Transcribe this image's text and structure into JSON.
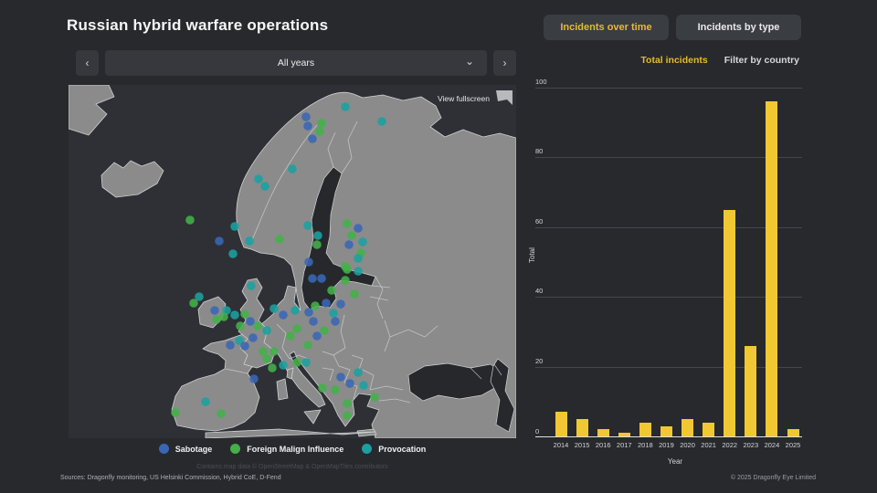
{
  "header": {
    "title": "Russian hybrid warfare operations",
    "tabs": [
      {
        "label": "Incidents over time",
        "active": true
      },
      {
        "label": "Incidents by type",
        "active": false
      }
    ]
  },
  "sub_tabs": [
    {
      "label": "Total incidents",
      "active": true
    },
    {
      "label": "Filter by country",
      "active": false
    }
  ],
  "year_selector": {
    "prev_icon": "‹",
    "value": "All years",
    "chevron_icon": "⌄",
    "next_icon": "›"
  },
  "map": {
    "fullscreen_label": "View fullscreen",
    "attribution": "Contains map data © OpenStreetMap & OpenMapTiles contributors",
    "legend": [
      {
        "key": "b",
        "label": "Sabotage",
        "color": "#3a66b5"
      },
      {
        "key": "g",
        "label": "Foreign Malign Influence",
        "color": "#43b049"
      },
      {
        "key": "t",
        "label": "Provocation",
        "color": "#1ba0a1"
      }
    ],
    "category_colors": {
      "b": "#3a66b5",
      "g": "#43b049",
      "t": "#1ba0a1"
    },
    "dots": [
      [
        303,
        24,
        "t"
      ],
      [
        343,
        40,
        "t"
      ],
      [
        260,
        35,
        "b"
      ],
      [
        262,
        45,
        "b"
      ],
      [
        277,
        42,
        "g"
      ],
      [
        275,
        51,
        "g"
      ],
      [
        267,
        59,
        "b"
      ],
      [
        245,
        92,
        "t"
      ],
      [
        208,
        103,
        "t"
      ],
      [
        215,
        111,
        "t"
      ],
      [
        133,
        148,
        "g"
      ],
      [
        182,
        155,
        "t"
      ],
      [
        165,
        171,
        "b"
      ],
      [
        180,
        185,
        "t"
      ],
      [
        231,
        169,
        "g"
      ],
      [
        198,
        171,
        "t"
      ],
      [
        262,
        154,
        "t"
      ],
      [
        305,
        152,
        "g"
      ],
      [
        317,
        157,
        "b"
      ],
      [
        310,
        165,
        "g"
      ],
      [
        273,
        165,
        "t"
      ],
      [
        272,
        175,
        "g"
      ],
      [
        307,
        175,
        "b"
      ],
      [
        322,
        172,
        "t"
      ],
      [
        320,
        184,
        "g"
      ],
      [
        317,
        190,
        "t"
      ],
      [
        263,
        194,
        "b"
      ],
      [
        303,
        199,
        "g"
      ],
      [
        200,
        220,
        "t"
      ],
      [
        143,
        232,
        "t"
      ],
      [
        137,
        239,
        "g"
      ],
      [
        160,
        247,
        "b"
      ],
      [
        173,
        247,
        "t"
      ],
      [
        162,
        257,
        "g"
      ],
      [
        170,
        254,
        "g"
      ],
      [
        182,
        252,
        "t"
      ],
      [
        193,
        251,
        "g"
      ],
      [
        199,
        259,
        "b"
      ],
      [
        188,
        264,
        "g"
      ],
      [
        207,
        264,
        "g"
      ],
      [
        217,
        269,
        "t"
      ],
      [
        202,
        277,
        "b"
      ],
      [
        187,
        280,
        "t"
      ],
      [
        177,
        285,
        "b"
      ],
      [
        193,
        286,
        "b"
      ],
      [
        213,
        292,
        "g"
      ],
      [
        217,
        300,
        "g"
      ],
      [
        223,
        310,
        "g"
      ],
      [
        203,
        322,
        "b"
      ],
      [
        150,
        347,
        "t"
      ],
      [
        117,
        359,
        "g"
      ],
      [
        167,
        360,
        "g"
      ],
      [
        305,
        202,
        "g"
      ],
      [
        317,
        204,
        "t"
      ],
      [
        267,
        212,
        "b"
      ],
      [
        277,
        212,
        "b"
      ],
      [
        303,
        214,
        "g"
      ],
      [
        288,
        225,
        "g"
      ],
      [
        313,
        229,
        "g"
      ],
      [
        282,
        239,
        "b"
      ],
      [
        298,
        240,
        "b"
      ],
      [
        248,
        247,
        "t"
      ],
      [
        263,
        249,
        "b"
      ],
      [
        290,
        250,
        "t"
      ],
      [
        292,
        259,
        "b"
      ],
      [
        268,
        259,
        "b"
      ],
      [
        250,
        267,
        "g"
      ],
      [
        280,
        269,
        "g"
      ],
      [
        272,
        275,
        "b"
      ],
      [
        262,
        285,
        "g"
      ],
      [
        225,
        245,
        "t"
      ],
      [
        235,
        252,
        "b"
      ],
      [
        243,
        275,
        "g"
      ],
      [
        225,
        292,
        "g"
      ],
      [
        235,
        307,
        "t"
      ],
      [
        270,
        242,
        "g"
      ],
      [
        250,
        304,
        "g"
      ],
      [
        260,
        304,
        "t"
      ],
      [
        317,
        315,
        "t"
      ],
      [
        298,
        320,
        "b"
      ],
      [
        308,
        327,
        "b"
      ],
      [
        323,
        329,
        "t"
      ],
      [
        278,
        332,
        "g"
      ],
      [
        292,
        334,
        "g"
      ],
      [
        335,
        342,
        "g"
      ],
      [
        305,
        349,
        "g"
      ],
      [
        305,
        362,
        "g"
      ]
    ]
  },
  "sources": "Sources: Dragonfly monitoring, US Helsinki Commission, Hybrid CoE, D-Fend",
  "footer_copyright": "© 2025 Dragonfly Eye Limited",
  "chart_data": {
    "type": "bar",
    "title": "Incidents over time — total incidents per year",
    "categories": [
      "2014",
      "2015",
      "2016",
      "2017",
      "2018",
      "2019",
      "2020",
      "2021",
      "2022",
      "2023",
      "2024",
      "2025"
    ],
    "values": [
      7,
      5,
      2,
      1,
      4,
      3,
      5,
      4,
      65,
      26,
      96,
      2
    ],
    "xlabel": "Year",
    "ylabel": "Total",
    "ylim": [
      0,
      100
    ],
    "ytick_step": 20,
    "bar_color": "#f2c832",
    "grid": true,
    "legend_position": "none"
  },
  "colors": {
    "background": "#27292d",
    "panel": "#3a3d42",
    "accent_yellow": "#e6ba2e",
    "map_sea": "#2e3035",
    "map_land": "#8b8b8b"
  }
}
